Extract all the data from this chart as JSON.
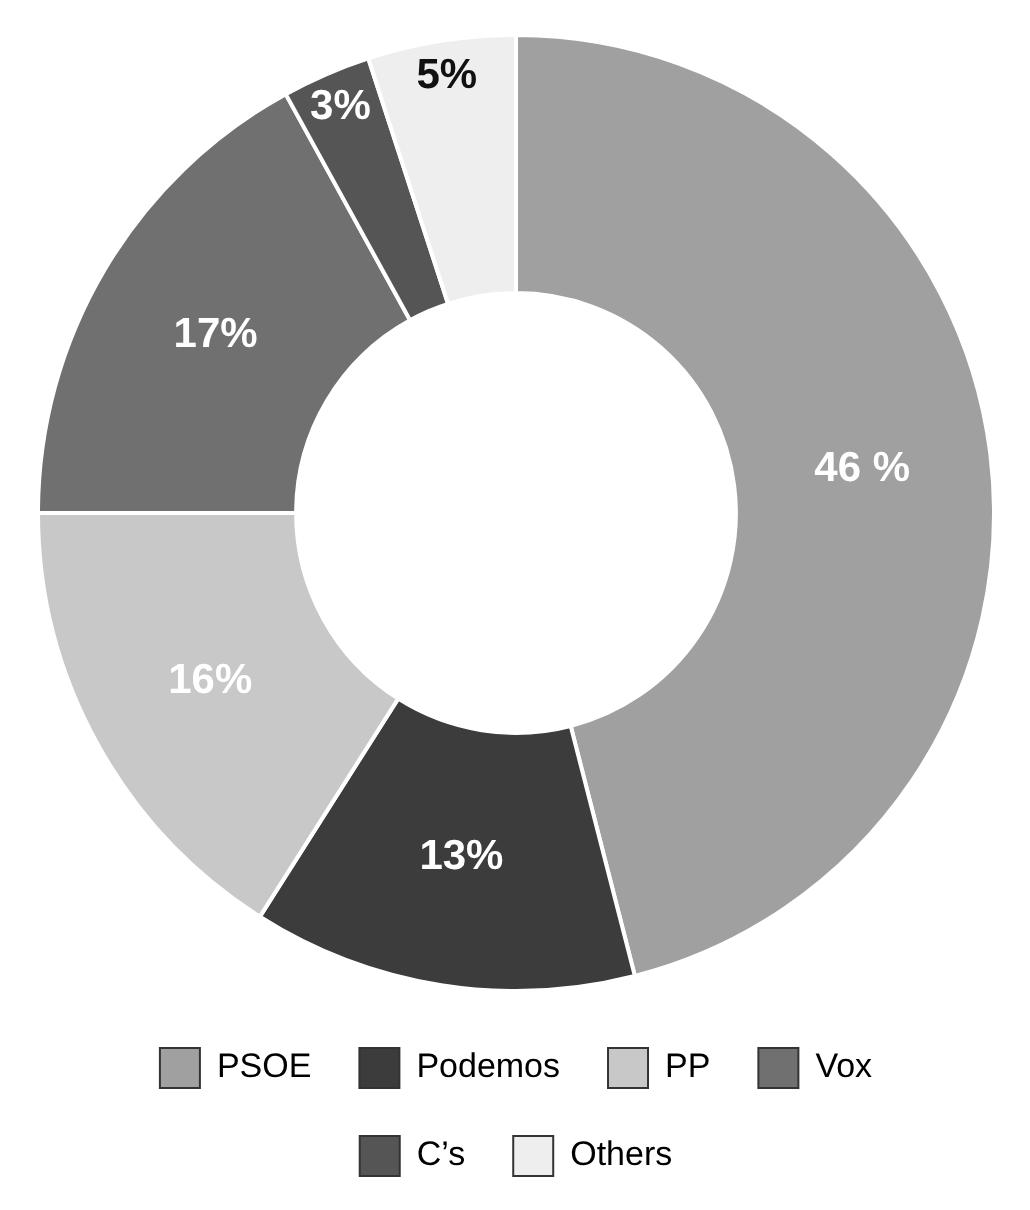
{
  "chart_data": {
    "type": "donut",
    "categories": [
      "PSOE",
      "Podemos",
      "PP",
      "Vox",
      "C’s",
      "Others"
    ],
    "values": [
      46,
      13,
      16,
      17,
      3,
      5
    ],
    "colors": [
      "#a0a0a0",
      "#3c3c3c",
      "#c8c8c8",
      "#707070",
      "#555555",
      "#eeeeee"
    ],
    "value_labels": [
      "46 %",
      "13%",
      "16%",
      "17%",
      "3%",
      "5%"
    ],
    "legend": "bottom"
  }
}
